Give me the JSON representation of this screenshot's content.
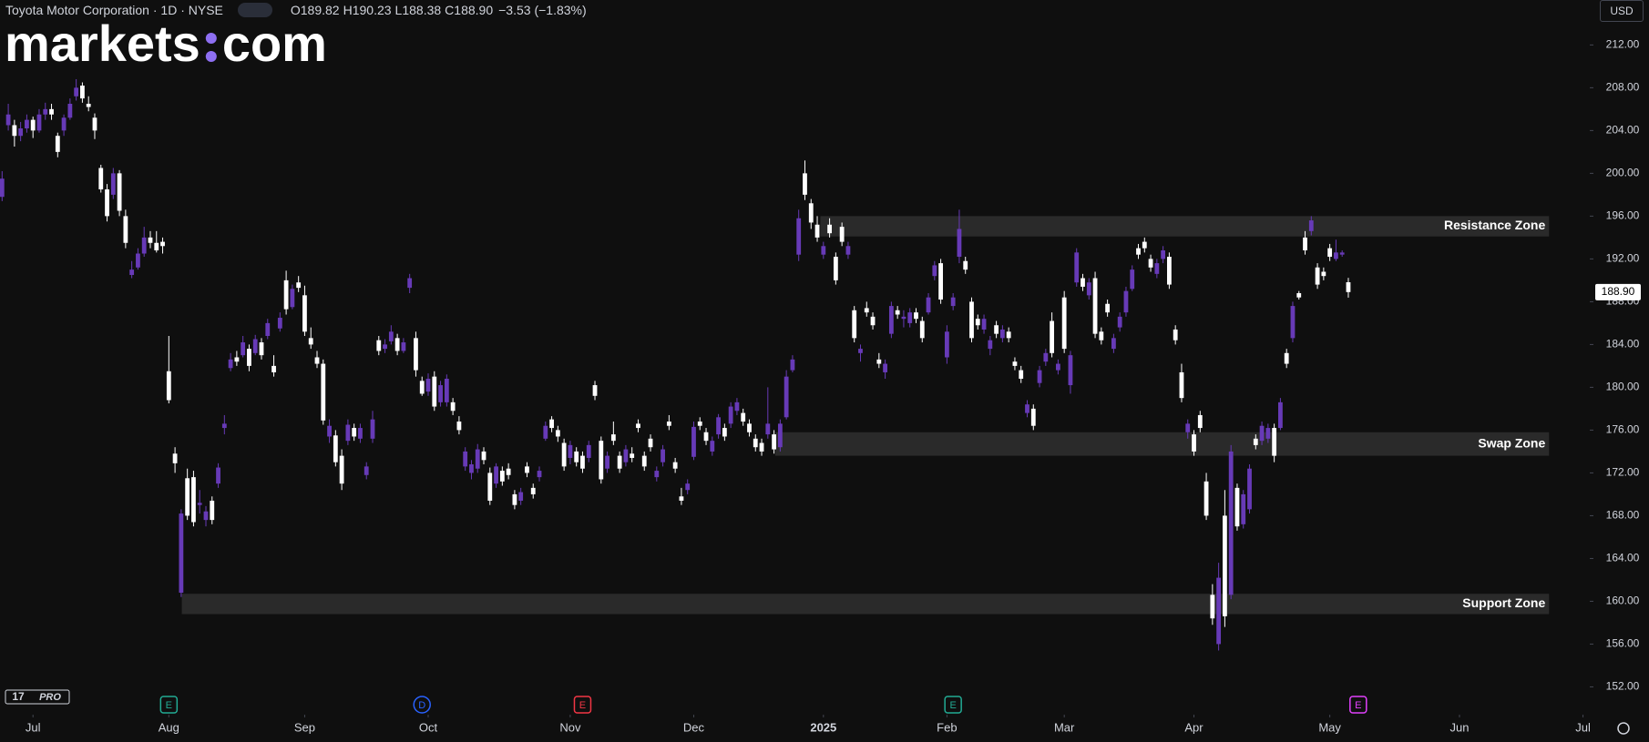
{
  "header": {
    "symbol": "Toyota Motor Corporation · 1D · NYSE",
    "ohlc": [
      [
        "O",
        "189.82"
      ],
      [
        "H",
        "190.23"
      ],
      [
        "L",
        "188.38"
      ],
      [
        "C",
        "188.90"
      ]
    ],
    "change": "−3.53 (−1.83%)",
    "currency": "USD",
    "logo": [
      "markets",
      "com"
    ],
    "pro": "PRO"
  },
  "chart_data": {
    "type": "candlestick",
    "up_color": "#673ab7",
    "down_color": "#ffffff",
    "zone_color": "#2a2a2a",
    "grid": false,
    "xlim": [
      -0.34,
      257.1
    ],
    "ylim": [
      149.4,
      216.2
    ],
    "yticks": [
      {
        "value": 152,
        "label": "152.00"
      },
      {
        "value": 156,
        "label": "156.00"
      },
      {
        "value": 160,
        "label": "160.00"
      },
      {
        "value": 164,
        "label": "164.00"
      },
      {
        "value": 168,
        "label": "168.00"
      },
      {
        "value": 172,
        "label": "172.00"
      },
      {
        "value": 176,
        "label": "176.00"
      },
      {
        "value": 180,
        "label": "180.00"
      },
      {
        "value": 184,
        "label": "184.00"
      },
      {
        "value": 188,
        "label": "188.00"
      },
      {
        "value": 192,
        "label": "192.00"
      },
      {
        "value": 196,
        "label": "196.00"
      },
      {
        "value": 200,
        "label": "200.00"
      },
      {
        "value": 204,
        "label": "204.00"
      },
      {
        "value": 208,
        "label": "208.00"
      },
      {
        "value": 212,
        "label": "212.00"
      }
    ],
    "xticks": [
      {
        "value": 5,
        "label": "Jul"
      },
      {
        "value": 27,
        "label": "Aug"
      },
      {
        "value": 49,
        "label": "Sep"
      },
      {
        "value": 69,
        "label": "Oct"
      },
      {
        "value": 92,
        "label": "Nov"
      },
      {
        "value": 112,
        "label": "Dec"
      },
      {
        "value": 133,
        "label": "2025"
      },
      {
        "value": 153,
        "label": "Feb"
      },
      {
        "value": 172,
        "label": "Mar"
      },
      {
        "value": 193,
        "label": "Apr"
      },
      {
        "value": 215,
        "label": "May"
      },
      {
        "value": 236,
        "label": "Jun"
      },
      {
        "value": 256,
        "label": "Jul"
      }
    ],
    "last_price": {
      "value": 188.9,
      "label": "188.90"
    },
    "zones": [
      {
        "label": "Resistance Zone",
        "low": 194.1,
        "high": 196,
        "start": 132.5,
        "end": 250.5
      },
      {
        "label": "Swap Zone",
        "low": 173.6,
        "high": 175.8,
        "start": 125.2,
        "end": 250.5
      },
      {
        "label": "Support Zone",
        "low": 158.8,
        "high": 160.7,
        "start": 29.1,
        "end": 250.5
      }
    ],
    "events": [
      {
        "label": "E",
        "at": 27,
        "color": "#22ab94"
      },
      {
        "label": "D",
        "at": 68,
        "color": "#2962ff"
      },
      {
        "label": "E",
        "at": 94,
        "color": "#f23645"
      },
      {
        "label": "E",
        "at": 154,
        "color": "#22ab94"
      },
      {
        "label": "E",
        "at": 219.6,
        "color": "#e040fb"
      }
    ],
    "candles": [
      [
        197.8,
        200.2,
        197.4,
        199.5
      ],
      [
        204.5,
        206.5,
        204,
        205.5
      ],
      [
        204.5,
        205,
        202.5,
        203.5
      ],
      [
        203.5,
        204.8,
        203,
        204.2
      ],
      [
        204.2,
        205.5,
        203.8,
        205
      ],
      [
        205,
        205.3,
        203.3,
        204
      ],
      [
        204,
        206,
        203.8,
        205.5
      ],
      [
        205.5,
        206.6,
        205,
        206
      ],
      [
        206,
        206.5,
        205,
        205.5
      ],
      [
        203.5,
        203.8,
        201.5,
        202
      ],
      [
        204,
        205.5,
        203.5,
        205.2
      ],
      [
        205.2,
        207,
        205,
        206.5
      ],
      [
        207.2,
        208.8,
        206.8,
        208
      ],
      [
        208.2,
        208.5,
        206.6,
        207
      ],
      [
        206.5,
        207.2,
        205.8,
        206.2
      ],
      [
        205.2,
        205.6,
        203.2,
        204
      ],
      [
        200.5,
        200.8,
        198.2,
        198.5
      ],
      [
        198.5,
        199,
        195.5,
        196
      ],
      [
        198,
        200.5,
        197.6,
        200
      ],
      [
        200,
        200.3,
        196,
        196.5
      ],
      [
        196,
        196.6,
        193,
        193.5
      ],
      [
        190.5,
        191.8,
        190.2,
        191
      ],
      [
        191.2,
        193,
        191,
        192.5
      ],
      [
        192.5,
        195,
        192.2,
        194
      ],
      [
        194,
        194.6,
        193,
        193.5
      ],
      [
        193.5,
        194.6,
        192.6,
        192.8
      ],
      [
        193.6,
        194,
        192.5,
        193.2
      ],
      [
        181.5,
        184.8,
        178.5,
        178.8
      ],
      [
        173.8,
        174.4,
        172,
        172.9
      ],
      [
        160.8,
        168.6,
        160.4,
        168.2
      ],
      [
        171.5,
        172.4,
        167.6,
        168
      ],
      [
        171.6,
        172.2,
        167,
        167.4
      ],
      [
        169,
        170.4,
        168.2,
        169.2
      ],
      [
        167.6,
        168.9,
        167,
        168.4
      ],
      [
        169.4,
        169.8,
        167.2,
        167.6
      ],
      [
        171,
        172.9,
        170.6,
        172.5
      ],
      [
        176.2,
        177.4,
        175.6,
        176.6
      ],
      [
        181.8,
        183.2,
        181.5,
        182.6
      ],
      [
        182.8,
        183.4,
        182,
        182.4
      ],
      [
        183,
        184.8,
        182.8,
        184.2
      ],
      [
        183.6,
        184,
        181.5,
        182
      ],
      [
        183.2,
        184.9,
        183,
        184.5
      ],
      [
        184.2,
        184.6,
        182.6,
        183
      ],
      [
        184.8,
        186.4,
        184.5,
        186
      ],
      [
        182,
        183,
        181,
        181.4
      ],
      [
        185.5,
        187,
        185.2,
        186.5
      ],
      [
        190,
        190.9,
        186.8,
        187.3
      ],
      [
        187.5,
        189.6,
        187.3,
        189.2
      ],
      [
        189.8,
        190.4,
        188.9,
        189.3
      ],
      [
        188.6,
        189.5,
        184.8,
        185.2
      ],
      [
        184.6,
        185.6,
        183.6,
        184
      ],
      [
        182.8,
        183.4,
        181.8,
        182.2
      ],
      [
        182.2,
        182.6,
        176.5,
        176.9
      ],
      [
        175.4,
        177,
        174.8,
        176.4
      ],
      [
        175.5,
        176,
        172.6,
        173
      ],
      [
        173.6,
        174.2,
        170.4,
        171
      ],
      [
        175,
        177,
        174.6,
        176.5
      ],
      [
        176.2,
        176.6,
        175,
        175.4
      ],
      [
        175.2,
        176.6,
        174.8,
        176.2
      ],
      [
        171.8,
        173,
        171.4,
        172.6
      ],
      [
        175.2,
        177.8,
        174.8,
        177
      ],
      [
        184.4,
        184.8,
        183,
        183.4
      ],
      [
        183.6,
        184.5,
        183.2,
        184
      ],
      [
        184.3,
        185.8,
        184,
        185.2
      ],
      [
        184.6,
        185,
        183,
        183.4
      ],
      [
        183.4,
        184.6,
        183.2,
        184.2
      ],
      [
        189.3,
        190.6,
        188.8,
        190.2
      ],
      [
        184.6,
        185.2,
        181,
        181.6
      ],
      [
        180.6,
        181,
        179.2,
        179.4
      ],
      [
        179.6,
        181.3,
        179.2,
        180.8
      ],
      [
        181,
        181.5,
        177.8,
        178.2
      ],
      [
        178.6,
        180.6,
        178.2,
        180.2
      ],
      [
        178.6,
        181.2,
        178.2,
        180.8
      ],
      [
        178.6,
        179,
        177.4,
        177.8
      ],
      [
        176.8,
        177.3,
        175.6,
        176
      ],
      [
        172.6,
        174.4,
        172.2,
        174
      ],
      [
        172,
        173.2,
        171.4,
        172.8
      ],
      [
        172.4,
        174.7,
        172,
        174.2
      ],
      [
        174,
        174.4,
        172.8,
        173.2
      ],
      [
        172,
        172.5,
        169,
        169.4
      ],
      [
        171,
        172.9,
        170.6,
        172.6
      ],
      [
        172.2,
        172.6,
        170.8,
        171.2
      ],
      [
        172.4,
        172.9,
        171.4,
        171.8
      ],
      [
        170,
        170.4,
        168.6,
        169
      ],
      [
        169.4,
        170.6,
        169,
        170.2
      ],
      [
        172.6,
        173,
        171.6,
        172
      ],
      [
        170.6,
        171,
        169.6,
        170
      ],
      [
        171.6,
        172.6,
        171.2,
        172.2
      ],
      [
        175.2,
        176.8,
        175,
        176.4
      ],
      [
        177,
        177.3,
        175.8,
        176.2
      ],
      [
        176,
        176.4,
        174.9,
        175.4
      ],
      [
        174.8,
        175.2,
        172.2,
        172.6
      ],
      [
        173.4,
        175,
        172.8,
        174.6
      ],
      [
        174,
        174.4,
        172.6,
        173
      ],
      [
        173.6,
        174,
        172,
        172.4
      ],
      [
        173.4,
        175,
        173,
        174.6
      ],
      [
        180.2,
        180.6,
        178.8,
        179.2
      ],
      [
        175,
        175.4,
        171,
        171.4
      ],
      [
        172.4,
        174,
        172,
        173.6
      ],
      [
        175.6,
        176.8,
        174.6,
        175
      ],
      [
        173.6,
        174,
        172,
        172.4
      ],
      [
        173,
        174.6,
        172.6,
        174.2
      ],
      [
        173.8,
        174.4,
        173,
        173.4
      ],
      [
        176.6,
        177,
        175.8,
        176.2
      ],
      [
        173.6,
        174,
        172.2,
        172.6
      ],
      [
        175.2,
        175.6,
        174,
        174.4
      ],
      [
        171.6,
        172.6,
        171.2,
        172.2
      ],
      [
        173,
        174.6,
        172.6,
        174.2
      ],
      [
        176.8,
        177.4,
        176,
        176.4
      ],
      [
        173,
        173.4,
        172,
        172.4
      ],
      [
        169.8,
        170.6,
        169,
        169.4
      ],
      [
        170.4,
        171.4,
        170,
        171
      ],
      [
        173.5,
        176.8,
        173.2,
        176.3
      ],
      [
        176.8,
        177.2,
        176,
        176.4
      ],
      [
        175.8,
        176.2,
        174.6,
        175
      ],
      [
        174,
        175.4,
        173.6,
        175
      ],
      [
        175.6,
        177.5,
        175.2,
        177.2
      ],
      [
        176.2,
        176.6,
        175,
        175.4
      ],
      [
        176.6,
        178.6,
        176.2,
        178.2
      ],
      [
        177.8,
        179,
        177.4,
        178.6
      ],
      [
        177.6,
        178,
        176.4,
        176.8
      ],
      [
        176.6,
        177,
        175.4,
        175.8
      ],
      [
        175.2,
        175.6,
        174,
        174.4
      ],
      [
        174.8,
        175.2,
        173.6,
        174
      ],
      [
        175.6,
        180,
        175.2,
        176.6
      ],
      [
        175.6,
        176,
        173.8,
        174.2
      ],
      [
        174.4,
        177,
        174,
        176.6
      ],
      [
        177.2,
        181.6,
        177,
        181
      ],
      [
        181.6,
        183,
        181.4,
        182.6
      ],
      [
        192.4,
        196.6,
        191.8,
        195.8
      ],
      [
        200,
        201.2,
        197.5,
        198
      ],
      [
        197.2,
        197.6,
        194.8,
        195.4
      ],
      [
        195.2,
        196,
        193.6,
        194
      ],
      [
        192.4,
        193.6,
        192,
        193.2
      ],
      [
        195.2,
        195.8,
        194,
        194.4
      ],
      [
        192.2,
        192.6,
        189.6,
        190
      ],
      [
        195,
        195.4,
        193.2,
        193.6
      ],
      [
        192.4,
        193.6,
        192,
        193.2
      ],
      [
        187.2,
        187.6,
        184.2,
        184.6
      ],
      [
        183.2,
        184,
        182.4,
        183.6
      ],
      [
        187.4,
        188,
        186.6,
        187
      ],
      [
        186.6,
        187,
        185.4,
        185.8
      ],
      [
        182.6,
        183.2,
        181.8,
        182.2
      ],
      [
        181.4,
        182.6,
        180.8,
        182.2
      ],
      [
        185,
        188,
        184.6,
        187.6
      ],
      [
        187.2,
        187.6,
        186.4,
        186.8
      ],
      [
        186.4,
        187.2,
        185.6,
        186.6
      ],
      [
        186,
        187.4,
        185.6,
        187
      ],
      [
        187,
        187.4,
        186,
        186.4
      ],
      [
        186.2,
        186.6,
        184.2,
        184.6
      ],
      [
        187,
        188.8,
        186.8,
        188.4
      ],
      [
        190.4,
        191.8,
        190,
        191.4
      ],
      [
        191.6,
        192,
        187.8,
        188.2
      ],
      [
        182.8,
        185.8,
        182.2,
        185.2
      ],
      [
        187.6,
        188.8,
        187.2,
        188.4
      ],
      [
        192.2,
        196.6,
        191.6,
        194.8
      ],
      [
        191.8,
        192.2,
        190.6,
        191
      ],
      [
        188,
        188.4,
        184.2,
        184.6
      ],
      [
        186.4,
        186.8,
        185.4,
        185.8
      ],
      [
        185.4,
        186.8,
        185,
        186.4
      ],
      [
        183.6,
        184.8,
        183,
        184.4
      ],
      [
        185.8,
        186.2,
        184.6,
        185
      ],
      [
        184.6,
        185.8,
        184.2,
        185.4
      ],
      [
        185.2,
        185.6,
        184.2,
        184.6
      ],
      [
        182.4,
        182.8,
        181.6,
        182
      ],
      [
        181.6,
        182,
        180.4,
        180.8
      ],
      [
        177.6,
        178.8,
        177.2,
        178.4
      ],
      [
        178,
        178.4,
        176,
        176.4
      ],
      [
        180.4,
        182,
        180,
        181.6
      ],
      [
        182.4,
        183.6,
        182,
        183.2
      ],
      [
        186.2,
        187,
        182.8,
        183.2
      ],
      [
        181.6,
        182.6,
        181.2,
        182.2
      ],
      [
        188.4,
        189,
        183.2,
        183.6
      ],
      [
        180.2,
        183.4,
        179.4,
        183
      ],
      [
        189.8,
        193,
        189.4,
        192.6
      ],
      [
        190.2,
        190.6,
        189,
        189.4
      ],
      [
        188.6,
        190.2,
        188.2,
        189.8
      ],
      [
        190.2,
        190.8,
        184.6,
        185
      ],
      [
        185.2,
        185.6,
        184,
        184.4
      ],
      [
        187.8,
        188.2,
        186.6,
        187
      ],
      [
        183.6,
        185,
        183.2,
        184.6
      ],
      [
        185.6,
        187,
        185.2,
        186.6
      ],
      [
        187,
        189.4,
        186.6,
        189
      ],
      [
        189.2,
        191.4,
        189,
        191
      ],
      [
        193,
        193.4,
        192,
        192.4
      ],
      [
        193.6,
        194,
        192.6,
        193
      ],
      [
        192,
        192.4,
        190.8,
        191.2
      ],
      [
        190.6,
        192,
        190.2,
        191.6
      ],
      [
        192,
        193.2,
        191.6,
        192.8
      ],
      [
        192.2,
        192.6,
        189.2,
        189.6
      ],
      [
        185.4,
        185.8,
        184,
        184.4
      ],
      [
        181.4,
        182.2,
        178.6,
        179
      ],
      [
        175.8,
        177,
        175.2,
        176.6
      ],
      [
        175.6,
        176,
        173.6,
        174
      ],
      [
        177.4,
        177.8,
        175.8,
        176.2
      ],
      [
        171.2,
        172,
        167.6,
        168
      ],
      [
        160.6,
        161.6,
        157.8,
        158.4
      ],
      [
        156,
        163.6,
        155.4,
        162.2
      ],
      [
        168,
        170.4,
        157.6,
        158.6
      ],
      [
        160.6,
        174.6,
        160.2,
        174
      ],
      [
        170.6,
        171,
        166.6,
        167
      ],
      [
        167.2,
        170.4,
        166.8,
        170
      ],
      [
        168.6,
        172.8,
        168.2,
        172.4
      ],
      [
        175.2,
        175.6,
        174.2,
        174.6
      ],
      [
        175,
        176.8,
        174.6,
        176.4
      ],
      [
        175.2,
        176.6,
        174.8,
        176.2
      ],
      [
        176.2,
        176.6,
        173,
        173.6
      ],
      [
        176.2,
        179,
        176,
        178.6
      ],
      [
        183.2,
        183.6,
        181.8,
        182.2
      ],
      [
        184.6,
        188,
        184.2,
        187.6
      ],
      [
        188.8,
        189,
        188.2,
        188.4
      ],
      [
        194,
        194.6,
        192.4,
        192.8
      ],
      [
        194.6,
        196,
        194.2,
        195.6
      ],
      [
        191.2,
        191.6,
        189.2,
        189.6
      ],
      [
        190.8,
        191.2,
        190,
        190.4
      ],
      [
        193,
        193.4,
        191.8,
        192.2
      ],
      [
        192,
        193.8,
        191.8,
        192.6
      ],
      [
        192.4,
        192.8,
        192.2,
        192.6
      ],
      [
        189.82,
        190.23,
        188.38,
        188.9
      ]
    ]
  }
}
